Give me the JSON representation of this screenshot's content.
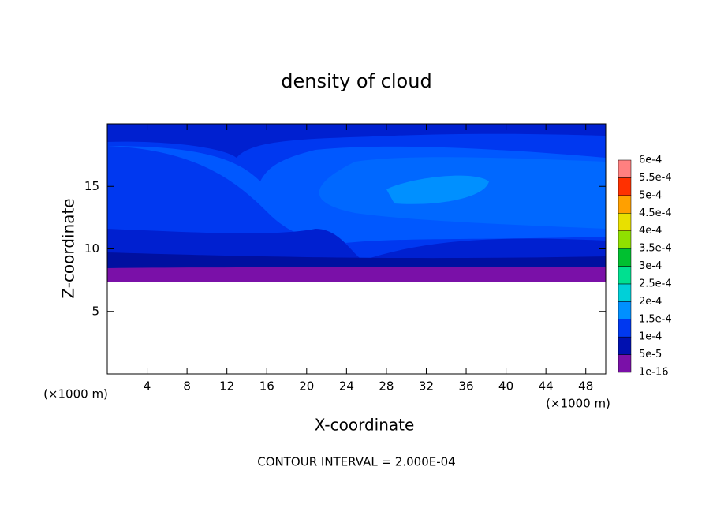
{
  "chart_data": {
    "type": "contour",
    "title": "density of cloud",
    "xlabel": "X-coordinate",
    "ylabel": "Z-coordinate",
    "x_unit_left": "(×1000 m)",
    "x_unit_right": "(×1000 m)",
    "footer": "CONTOUR INTERVAL = 2.000E-04",
    "xlim": [
      0,
      50
    ],
    "xticks": [
      4,
      8,
      12,
      16,
      20,
      24,
      28,
      32,
      36,
      40,
      44,
      48
    ],
    "ylim": [
      0,
      20
    ],
    "yticks": [
      5,
      10,
      15
    ],
    "colorbar": {
      "levels": [
        {
          "value": 1e-16,
          "label": "1e-16"
        },
        {
          "value": 5e-05,
          "label": "5e-5"
        },
        {
          "value": 0.0001,
          "label": "1e-4"
        },
        {
          "value": 0.00015,
          "label": "1.5e-4"
        },
        {
          "value": 0.0002,
          "label": "2e-4"
        },
        {
          "value": 0.00025,
          "label": "2.5e-4"
        },
        {
          "value": 0.0003,
          "label": "3e-4"
        },
        {
          "value": 0.00035,
          "label": "3.5e-4"
        },
        {
          "value": 0.0004,
          "label": "4e-4"
        },
        {
          "value": 0.00045,
          "label": "4.5e-4"
        },
        {
          "value": 0.0005,
          "label": "5e-4"
        },
        {
          "value": 0.00055,
          "label": "5.5e-4"
        },
        {
          "value": 0.0006,
          "label": "6e-4"
        }
      ],
      "colors": [
        "#7a10a8",
        "#0010b0",
        "#0038f0",
        "#0090ff",
        "#00d0d8",
        "#00e090",
        "#00c030",
        "#90e000",
        "#e8e000",
        "#ffa000",
        "#ff3000",
        "#ff8080"
      ]
    }
  }
}
